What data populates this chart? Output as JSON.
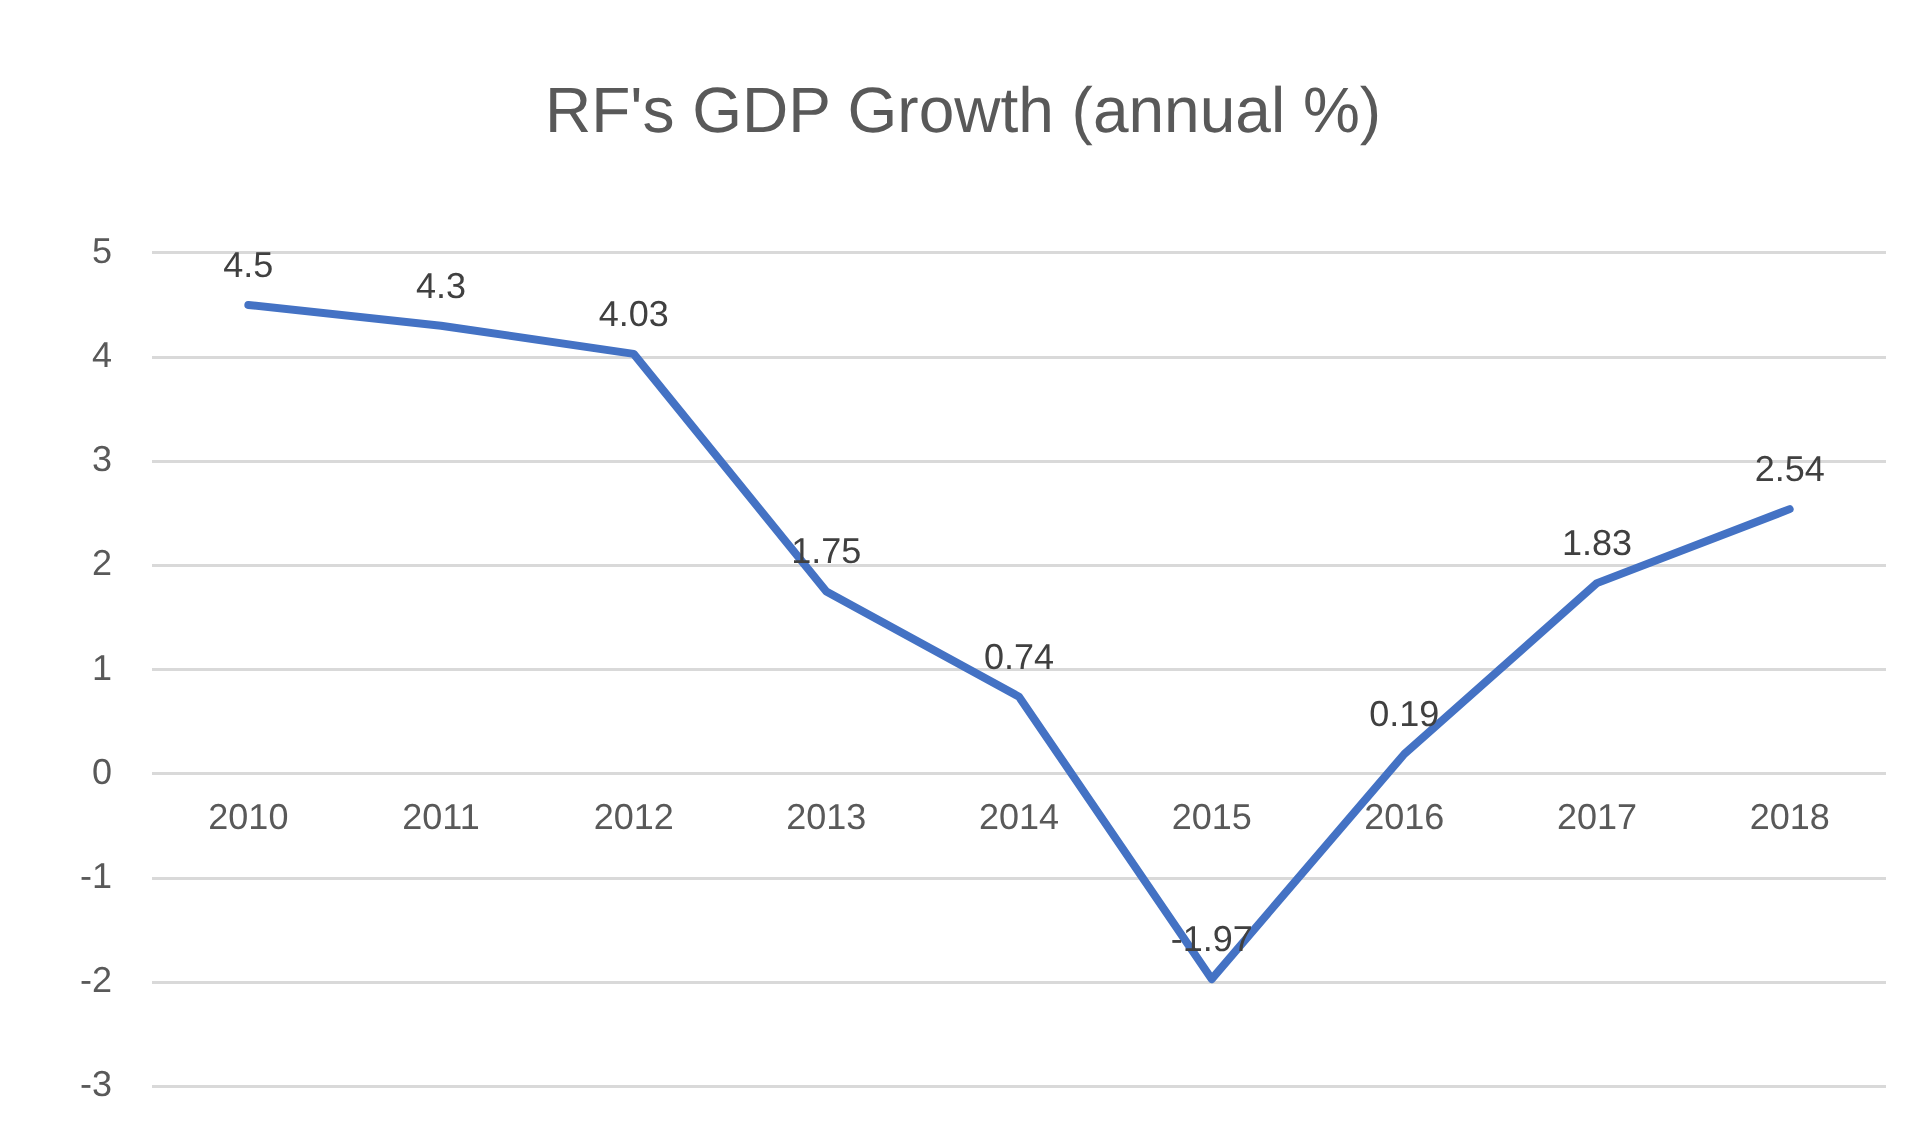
{
  "chart_data": {
    "type": "line",
    "title": "RF's GDP Growth (annual %)",
    "categories": [
      "2010",
      "2011",
      "2012",
      "2013",
      "2014",
      "2015",
      "2016",
      "2017",
      "2018"
    ],
    "series": [
      {
        "color": "#4472c4",
        "values": [
          4.5,
          4.3,
          4.03,
          1.75,
          0.74,
          -1.97,
          0.19,
          1.83,
          2.54
        ]
      }
    ],
    "ylim": [
      -3,
      5
    ],
    "yticks": [
      -3,
      -2,
      -1,
      0,
      1,
      2,
      3,
      4,
      5
    ],
    "grid": "y",
    "legend": false,
    "marker": "none",
    "line_style": "solid",
    "data_labels": true
  }
}
